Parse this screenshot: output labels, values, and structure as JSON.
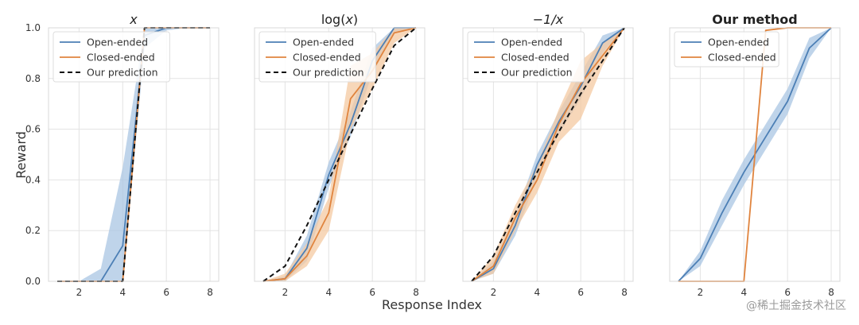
{
  "figure": {
    "xlabel": "Response Index",
    "ylabel": "Reward",
    "watermark": "@稀土掘金技术社区"
  },
  "colors": {
    "open": "#4c7fb5",
    "open_band": "#a9c6e3",
    "closed": "#e0843e",
    "closed_band": "#f4c9a2",
    "prediction": "#111111",
    "grid": "#e3e3e3",
    "axes_border": "#d8d8d8"
  },
  "chart_data": [
    {
      "type": "line",
      "title": "x",
      "title_style": "italic",
      "xlim": [
        0.6,
        8.4
      ],
      "ylim": [
        0,
        1
      ],
      "xticks": [
        "2",
        "4",
        "6",
        "8"
      ],
      "yticks": [
        "0.0",
        "0.2",
        "0.4",
        "0.6",
        "0.8",
        "1.0"
      ],
      "show_yticklabels": true,
      "legend": "top-left",
      "x": [
        1,
        2,
        3,
        4,
        5,
        6,
        7,
        8
      ],
      "series": [
        {
          "name": "Open-ended",
          "values": [
            0,
            0,
            0,
            0.14,
            0.97,
            1.0,
            1.0,
            1.0
          ],
          "lower": [
            0,
            0,
            0,
            0,
            0.92,
            0.99,
            1.0,
            1.0
          ],
          "upper": [
            0,
            0,
            0.05,
            0.45,
            1.0,
            1.0,
            1.0,
            1.0
          ]
        },
        {
          "name": "Closed-ended",
          "values": [
            0,
            0,
            0,
            0,
            1.0,
            1.0,
            1.0,
            1.0
          ]
        },
        {
          "name": "Our prediction",
          "values": [
            0,
            0,
            0,
            0,
            1.0,
            1.0,
            1.0,
            1.0
          ],
          "dashed": true
        }
      ]
    },
    {
      "type": "line",
      "title": "log(x)",
      "title_style": "mathlog",
      "xlim": [
        0.6,
        8.4
      ],
      "ylim": [
        0,
        1
      ],
      "xticks": [
        "2",
        "4",
        "6",
        "8"
      ],
      "yticks": [
        "0.0",
        "0.2",
        "0.4",
        "0.6",
        "0.8",
        "1.0"
      ],
      "show_yticklabels": false,
      "legend": "top-left",
      "x": [
        1,
        2,
        3,
        4,
        5,
        6,
        7,
        8
      ],
      "series": [
        {
          "name": "Open-ended",
          "values": [
            0,
            0.01,
            0.13,
            0.42,
            0.62,
            0.87,
            1.0,
            1.0
          ],
          "lower": [
            0,
            0,
            0.08,
            0.37,
            0.57,
            0.82,
            0.98,
            1.0
          ],
          "upper": [
            0,
            0.02,
            0.18,
            0.47,
            0.67,
            0.92,
            1.0,
            1.0
          ]
        },
        {
          "name": "Closed-ended",
          "values": [
            0,
            0.01,
            0.1,
            0.27,
            0.72,
            0.83,
            0.98,
            1.0
          ],
          "lower": [
            0,
            0,
            0.06,
            0.2,
            0.6,
            0.76,
            0.94,
            1.0
          ],
          "upper": [
            0,
            0.03,
            0.15,
            0.33,
            0.85,
            0.9,
            1.0,
            1.0
          ]
        },
        {
          "name": "Our prediction",
          "values": [
            0,
            0.06,
            0.22,
            0.4,
            0.58,
            0.76,
            0.93,
            1.0
          ],
          "dashed": true
        }
      ]
    },
    {
      "type": "line",
      "title": "−1/x",
      "title_style": "italic",
      "xlim": [
        0.6,
        8.4
      ],
      "ylim": [
        0,
        1
      ],
      "xticks": [
        "2",
        "4",
        "6",
        "8"
      ],
      "yticks": [
        "0.0",
        "0.2",
        "0.4",
        "0.6",
        "0.8",
        "1.0"
      ],
      "show_yticklabels": false,
      "legend": "top-left",
      "x": [
        1,
        2,
        3,
        4,
        5,
        6,
        7,
        8
      ],
      "series": [
        {
          "name": "Open-ended",
          "values": [
            0,
            0.05,
            0.22,
            0.46,
            0.63,
            0.77,
            0.94,
            1.0
          ],
          "lower": [
            0,
            0.03,
            0.18,
            0.41,
            0.58,
            0.72,
            0.9,
            1.0
          ],
          "upper": [
            0,
            0.08,
            0.26,
            0.5,
            0.67,
            0.82,
            0.97,
            1.0
          ]
        },
        {
          "name": "Closed-ended",
          "values": [
            0,
            0.06,
            0.25,
            0.4,
            0.62,
            0.78,
            0.89,
            1.0
          ],
          "lower": [
            0,
            0.03,
            0.2,
            0.35,
            0.55,
            0.64,
            0.85,
            1.0
          ],
          "upper": [
            0,
            0.1,
            0.3,
            0.46,
            0.68,
            0.87,
            0.94,
            1.0
          ]
        },
        {
          "name": "Our prediction",
          "values": [
            0,
            0.1,
            0.27,
            0.43,
            0.59,
            0.74,
            0.87,
            1.0
          ],
          "dashed": true
        }
      ]
    },
    {
      "type": "line",
      "title": "Our method",
      "title_style": "bold",
      "xlim": [
        0.6,
        8.4
      ],
      "ylim": [
        0,
        1
      ],
      "xticks": [
        "2",
        "4",
        "6",
        "8"
      ],
      "yticks": [
        "0.0",
        "0.2",
        "0.4",
        "0.6",
        "0.8",
        "1.0"
      ],
      "show_yticklabels": false,
      "legend": "top-left",
      "x": [
        1,
        2,
        3,
        4,
        5,
        6,
        7,
        8
      ],
      "series": [
        {
          "name": "Open-ended",
          "values": [
            0,
            0.09,
            0.27,
            0.43,
            0.57,
            0.71,
            0.92,
            1.0
          ],
          "lower": [
            0,
            0.06,
            0.22,
            0.38,
            0.52,
            0.66,
            0.88,
            1.0
          ],
          "upper": [
            0,
            0.12,
            0.32,
            0.48,
            0.62,
            0.76,
            0.96,
            1.0
          ]
        },
        {
          "name": "Closed-ended",
          "values": [
            0,
            0,
            0,
            0,
            0.99,
            1.0,
            1.0,
            1.0
          ]
        }
      ]
    }
  ]
}
